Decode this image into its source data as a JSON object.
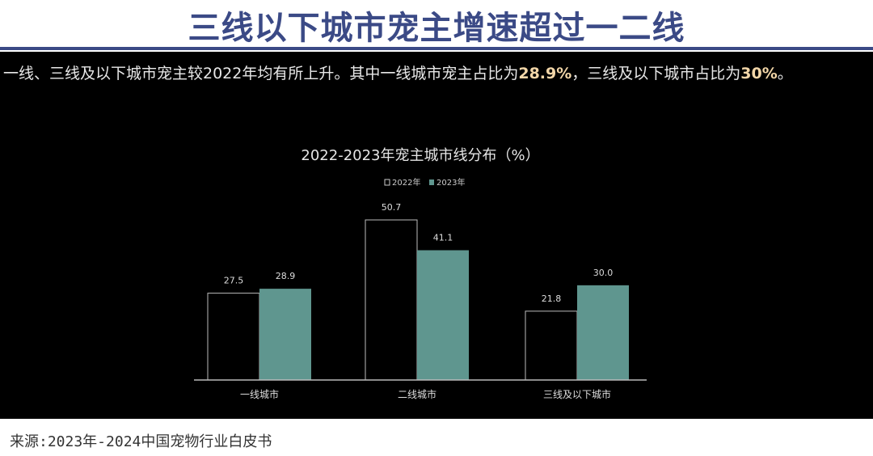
{
  "header": {
    "title": "三线以下城市宠主增速超过一二线"
  },
  "summary": {
    "part1": "一线、三线及以下城市宠主较2022年均有所上升。其中一线城市宠主占比为",
    "hl1": "28.9%",
    "part2": "，三线及以下城市占比为",
    "hl2": "30%",
    "part3": "。"
  },
  "footer": {
    "source": "来源:2023年-2024中国宠物行业白皮书"
  },
  "colors": {
    "title": "#3b4a86",
    "series_2023": "#5f968f",
    "series_2022_outline": "#d0d0d0",
    "highlight": "#f2d6a8"
  },
  "chart_data": {
    "type": "bar",
    "title": "2022-2023年宠主城市线分布（%）",
    "categories": [
      "一线城市",
      "二线城市",
      "三线及以下城市"
    ],
    "series": [
      {
        "name": "2022年",
        "values": [
          27.5,
          50.7,
          21.8
        ]
      },
      {
        "name": "2023年",
        "values": [
          28.9,
          41.1,
          30.0
        ]
      }
    ],
    "legend": "top",
    "grid": false,
    "ylim": [
      0,
      55
    ]
  }
}
